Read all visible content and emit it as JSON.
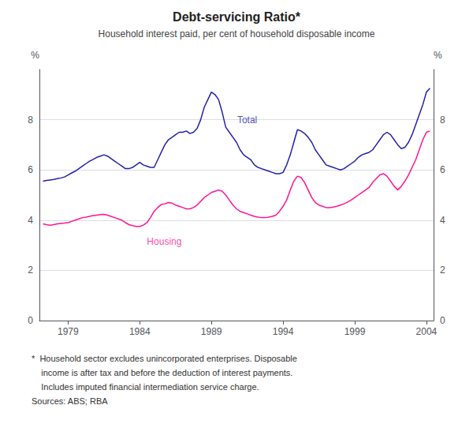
{
  "chart_data": {
    "type": "line",
    "title": "Debt-servicing Ratio*",
    "subtitle": "Household interest paid, per cent of household disposable income",
    "ylabel": "%",
    "y2label": "%",
    "footnote": [
      "*  Household sector excludes unincorporated enterprises. Disposable",
      "    income is after tax and before the deduction of interest payments.",
      "    Includes imputed financial intermediation service charge.",
      "Sources: ABS; RBA"
    ],
    "xlim": [
      1977.0,
      2004.5
    ],
    "xticks": [
      1979,
      1984,
      1989,
      1994,
      1999,
      2004
    ],
    "ylim": [
      0,
      10
    ],
    "yticks": [
      0,
      2,
      4,
      6,
      8
    ],
    "y2lim": [
      0,
      10
    ],
    "y2ticks": [
      0,
      2,
      4,
      6,
      8
    ],
    "grid": true,
    "background_color": "#FFFFFF",
    "x": [
      1977.25,
      1977.5,
      1977.75,
      1978.0,
      1978.25,
      1978.5,
      1978.75,
      1979.0,
      1979.25,
      1979.5,
      1979.75,
      1980.0,
      1980.25,
      1980.5,
      1980.75,
      1981.0,
      1981.25,
      1981.5,
      1981.75,
      1982.0,
      1982.25,
      1982.5,
      1982.75,
      1983.0,
      1983.25,
      1983.5,
      1983.75,
      1984.0,
      1984.25,
      1984.5,
      1984.75,
      1985.0,
      1985.25,
      1985.5,
      1985.75,
      1986.0,
      1986.25,
      1986.5,
      1986.75,
      1987.0,
      1987.25,
      1987.5,
      1987.75,
      1988.0,
      1988.25,
      1988.5,
      1988.75,
      1989.0,
      1989.25,
      1989.5,
      1989.75,
      1990.0,
      1990.25,
      1990.5,
      1990.75,
      1991.0,
      1991.25,
      1991.5,
      1991.75,
      1992.0,
      1992.25,
      1992.5,
      1992.75,
      1993.0,
      1993.25,
      1993.5,
      1993.75,
      1994.0,
      1994.25,
      1994.5,
      1994.75,
      1995.0,
      1995.25,
      1995.5,
      1995.75,
      1996.0,
      1996.25,
      1996.5,
      1996.75,
      1997.0,
      1997.25,
      1997.5,
      1997.75,
      1998.0,
      1998.25,
      1998.5,
      1998.75,
      1999.0,
      1999.25,
      1999.5,
      1999.75,
      2000.0,
      2000.25,
      2000.5,
      2000.75,
      2001.0,
      2001.25,
      2001.5,
      2001.75,
      2002.0,
      2002.25,
      2002.5,
      2002.75,
      2003.0,
      2003.25,
      2003.5,
      2003.75,
      2004.0,
      2004.25
    ],
    "series": [
      {
        "name": "Total",
        "color": "#2222AA",
        "values": [
          5.55,
          5.58,
          5.6,
          5.62,
          5.65,
          5.68,
          5.72,
          5.8,
          5.88,
          5.95,
          6.05,
          6.15,
          6.25,
          6.35,
          6.42,
          6.5,
          6.55,
          6.6,
          6.55,
          6.45,
          6.35,
          6.25,
          6.15,
          6.05,
          6.05,
          6.1,
          6.2,
          6.3,
          6.2,
          6.15,
          6.1,
          6.1,
          6.4,
          6.7,
          7.0,
          7.2,
          7.3,
          7.4,
          7.5,
          7.5,
          7.55,
          7.45,
          7.5,
          7.65,
          8.0,
          8.5,
          8.8,
          9.1,
          9.0,
          8.8,
          8.3,
          7.7,
          7.5,
          7.3,
          7.1,
          6.8,
          6.6,
          6.5,
          6.4,
          6.2,
          6.1,
          6.05,
          6.0,
          5.95,
          5.9,
          5.85,
          5.85,
          5.9,
          6.2,
          6.6,
          7.1,
          7.6,
          7.55,
          7.45,
          7.3,
          7.1,
          6.8,
          6.6,
          6.4,
          6.2,
          6.15,
          6.1,
          6.05,
          6.0,
          6.05,
          6.15,
          6.25,
          6.35,
          6.5,
          6.6,
          6.65,
          6.7,
          6.8,
          7.0,
          7.2,
          7.4,
          7.5,
          7.4,
          7.2,
          7.0,
          6.85,
          6.9,
          7.1,
          7.4,
          7.8,
          8.2,
          8.6,
          9.1,
          9.25
        ]
      },
      {
        "name": "Housing",
        "color": "#FF1493",
        "values": [
          3.85,
          3.82,
          3.8,
          3.82,
          3.85,
          3.87,
          3.88,
          3.9,
          3.95,
          4.0,
          4.05,
          4.1,
          4.12,
          4.15,
          4.18,
          4.2,
          4.22,
          4.23,
          4.2,
          4.15,
          4.1,
          4.05,
          4.0,
          3.9,
          3.82,
          3.78,
          3.75,
          3.75,
          3.8,
          3.9,
          4.1,
          4.35,
          4.5,
          4.62,
          4.65,
          4.7,
          4.68,
          4.6,
          4.55,
          4.5,
          4.45,
          4.45,
          4.5,
          4.6,
          4.75,
          4.9,
          5.0,
          5.1,
          5.15,
          5.2,
          5.15,
          5.0,
          4.8,
          4.6,
          4.45,
          4.35,
          4.3,
          4.25,
          4.2,
          4.15,
          4.12,
          4.1,
          4.1,
          4.12,
          4.15,
          4.2,
          4.35,
          4.55,
          4.8,
          5.2,
          5.55,
          5.75,
          5.7,
          5.5,
          5.2,
          4.9,
          4.7,
          4.6,
          4.55,
          4.5,
          4.5,
          4.52,
          4.55,
          4.6,
          4.65,
          4.72,
          4.8,
          4.9,
          5.0,
          5.1,
          5.2,
          5.3,
          5.5,
          5.65,
          5.8,
          5.85,
          5.75,
          5.55,
          5.35,
          5.2,
          5.35,
          5.55,
          5.8,
          6.1,
          6.4,
          6.8,
          7.2,
          7.5,
          7.55
        ]
      }
    ],
    "annotations": [
      {
        "text": "Total",
        "x": 1990.8,
        "y": 8.0,
        "color": "#2222AA"
      },
      {
        "text": "Housing",
        "x": 1984.5,
        "y": 3.15,
        "color": "#FF1493"
      }
    ]
  }
}
